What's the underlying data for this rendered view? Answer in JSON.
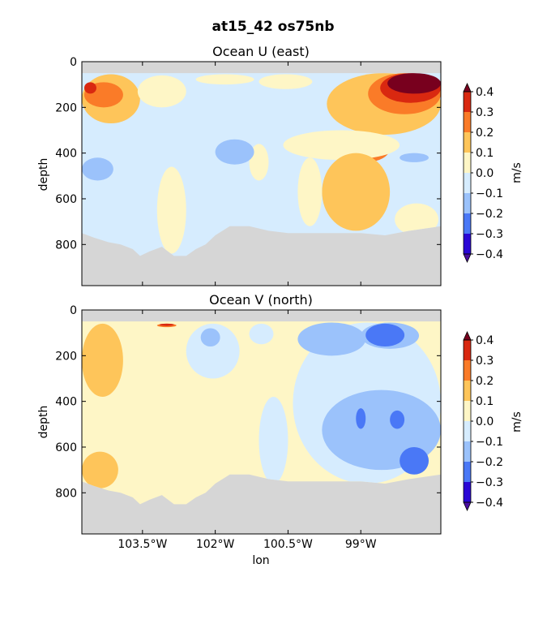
{
  "figure": {
    "suptitle": "at15_42 os75nb"
  },
  "colors": {
    "land": "#d6d6d6",
    "levels": [
      "#2a07d6",
      "#4a78f6",
      "#9bc2fb",
      "#d6ecfe",
      "#fef6c6",
      "#fec55a",
      "#fa7b28",
      "#d92810"
    ],
    "under": "#4a0ea0",
    "over": "#78001e"
  },
  "chart_data": [
    {
      "type": "heatmap",
      "title": "Ocean U (east)",
      "ylabel": "depth",
      "xlabel": "",
      "xlim": [
        -104.75,
        -97.35
      ],
      "ylim": [
        980,
        0
      ],
      "yticks": [
        0,
        200,
        400,
        600,
        800
      ],
      "ytick_labels": [
        "0",
        "200",
        "400",
        "600",
        "800"
      ],
      "xticks": [
        -103.5,
        -102,
        -100.5,
        -99
      ],
      "xtick_labels": [
        "103.5°W",
        "102°W",
        "100.5°W",
        "99°W"
      ],
      "colorbar": {
        "label": "m/s",
        "levels": [
          -0.4,
          -0.3,
          -0.2,
          -0.1,
          0.0,
          0.1,
          0.2,
          0.3,
          0.4
        ],
        "tick_labels": [
          "−0.4",
          "−0.3",
          "−0.2",
          "−0.1",
          "0.0",
          "0.1",
          "0.2",
          "0.3",
          "0.4"
        ]
      },
      "surface_gap_depth": 50,
      "background_value": -0.05,
      "regions": [
        {
          "lon": [
            -104.75,
            -103.55
          ],
          "depth": [
            55,
            270
          ],
          "value": 0.15
        },
        {
          "lon": [
            -104.7,
            -103.9
          ],
          "depth": [
            90,
            200
          ],
          "value": 0.25
        },
        {
          "lon": [
            -104.7,
            -104.45
          ],
          "depth": [
            90,
            140
          ],
          "value": 0.35
        },
        {
          "lon": [
            -103.6,
            -102.6
          ],
          "depth": [
            60,
            200
          ],
          "value": 0.05
        },
        {
          "lon": [
            -102.4,
            -101.2
          ],
          "depth": [
            55,
            100
          ],
          "value": 0.05
        },
        {
          "lon": [
            -101.1,
            -100.0
          ],
          "depth": [
            55,
            120
          ],
          "value": 0.05
        },
        {
          "lon": [
            -99.7,
            -97.35
          ],
          "depth": [
            50,
            320
          ],
          "value": 0.15
        },
        {
          "lon": [
            -98.85,
            -97.35
          ],
          "depth": [
            50,
            230
          ],
          "value": 0.25
        },
        {
          "lon": [
            -98.6,
            -97.35
          ],
          "depth": [
            50,
            180
          ],
          "value": 0.35
        },
        {
          "lon": [
            -98.45,
            -97.35
          ],
          "depth": [
            50,
            140
          ],
          "value": 0.45
        },
        {
          "lon": [
            -99.4,
            -98.4
          ],
          "depth": [
            320,
            440
          ],
          "value": 0.25
        },
        {
          "lon": [
            -100.6,
            -98.2
          ],
          "depth": [
            300,
            430
          ],
          "value": 0.05
        },
        {
          "lon": [
            -99.8,
            -98.4
          ],
          "depth": [
            400,
            740
          ],
          "value": 0.15
        },
        {
          "lon": [
            -100.3,
            -99.8
          ],
          "depth": [
            420,
            720
          ],
          "value": 0.05
        },
        {
          "lon": [
            -98.3,
            -97.4
          ],
          "depth": [
            620,
            760
          ],
          "value": 0.05
        },
        {
          "lon": [
            -103.2,
            -102.6
          ],
          "depth": [
            460,
            840
          ],
          "value": 0.05
        },
        {
          "lon": [
            -101.3,
            -100.9
          ],
          "depth": [
            360,
            520
          ],
          "value": 0.05
        },
        {
          "lon": [
            -104.75,
            -104.1
          ],
          "depth": [
            420,
            520
          ],
          "value": -0.15
        },
        {
          "lon": [
            -102.0,
            -101.2
          ],
          "depth": [
            340,
            450
          ],
          "value": -0.15
        },
        {
          "lon": [
            -98.2,
            -97.6
          ],
          "depth": [
            400,
            440
          ],
          "value": -0.15
        }
      ],
      "bottom_depth_by_lon": [
        [
          -104.75,
          750
        ],
        [
          -104.5,
          770
        ],
        [
          -104.2,
          790
        ],
        [
          -103.95,
          800
        ],
        [
          -103.7,
          820
        ],
        [
          -103.55,
          850
        ],
        [
          -103.35,
          830
        ],
        [
          -103.1,
          810
        ],
        [
          -102.85,
          850
        ],
        [
          -102.6,
          850
        ],
        [
          -102.4,
          820
        ],
        [
          -102.2,
          800
        ],
        [
          -102.0,
          760
        ],
        [
          -101.7,
          720
        ],
        [
          -101.3,
          720
        ],
        [
          -100.9,
          740
        ],
        [
          -100.5,
          750
        ],
        [
          -100.0,
          750
        ],
        [
          -99.5,
          750
        ],
        [
          -99.0,
          750
        ],
        [
          -98.5,
          760
        ],
        [
          -98.0,
          740
        ],
        [
          -97.35,
          720
        ]
      ]
    },
    {
      "type": "heatmap",
      "title": "Ocean V (north)",
      "ylabel": "depth",
      "xlabel": "lon",
      "xlim": [
        -104.75,
        -97.35
      ],
      "ylim": [
        980,
        0
      ],
      "yticks": [
        0,
        200,
        400,
        600,
        800
      ],
      "ytick_labels": [
        "0",
        "200",
        "400",
        "600",
        "800"
      ],
      "xticks": [
        -103.5,
        -102,
        -100.5,
        -99
      ],
      "xtick_labels": [
        "103.5°W",
        "102°W",
        "100.5°W",
        "99°W"
      ],
      "colorbar": {
        "label": "m/s",
        "levels": [
          -0.4,
          -0.3,
          -0.2,
          -0.1,
          0.0,
          0.1,
          0.2,
          0.3,
          0.4
        ],
        "tick_labels": [
          "−0.4",
          "−0.3",
          "−0.2",
          "−0.1",
          "0.0",
          "0.1",
          "0.2",
          "0.3",
          "0.4"
        ]
      },
      "surface_gap_depth": 50,
      "background_value": 0.05,
      "regions": [
        {
          "lon": [
            -104.75,
            -103.9
          ],
          "depth": [
            60,
            380
          ],
          "value": 0.15
        },
        {
          "lon": [
            -104.75,
            -104.0
          ],
          "depth": [
            620,
            780
          ],
          "value": 0.15
        },
        {
          "lon": [
            -102.6,
            -101.5
          ],
          "depth": [
            60,
            300
          ],
          "value": -0.05
        },
        {
          "lon": [
            -102.3,
            -101.9
          ],
          "depth": [
            80,
            160
          ],
          "value": -0.15
        },
        {
          "lon": [
            -101.3,
            -100.8
          ],
          "depth": [
            60,
            150
          ],
          "value": -0.05
        },
        {
          "lon": [
            -101.1,
            -100.5
          ],
          "depth": [
            380,
            760
          ],
          "value": -0.05
        },
        {
          "lon": [
            -100.4,
            -97.35
          ],
          "depth": [
            55,
            760
          ],
          "value": -0.05
        },
        {
          "lon": [
            -100.3,
            -98.9
          ],
          "depth": [
            55,
            200
          ],
          "value": -0.15
        },
        {
          "lon": [
            -99.0,
            -97.8
          ],
          "depth": [
            55,
            170
          ],
          "value": -0.15
        },
        {
          "lon": [
            -98.9,
            -98.1
          ],
          "depth": [
            60,
            160
          ],
          "value": -0.25
        },
        {
          "lon": [
            -99.8,
            -97.35
          ],
          "depth": [
            350,
            700
          ],
          "value": -0.15
        },
        {
          "lon": [
            -99.1,
            -98.9
          ],
          "depth": [
            430,
            520
          ],
          "value": -0.25
        },
        {
          "lon": [
            -98.4,
            -98.1
          ],
          "depth": [
            440,
            520
          ],
          "value": -0.25
        },
        {
          "lon": [
            -98.2,
            -97.6
          ],
          "depth": [
            600,
            720
          ],
          "value": -0.25
        },
        {
          "lon": [
            -103.2,
            -102.8
          ],
          "depth": [
            60,
            75
          ],
          "value": 0.25
        },
        {
          "lon": [
            -103.15,
            -102.85
          ],
          "depth": [
            60,
            70
          ],
          "value": 0.35
        }
      ],
      "bottom_depth_by_lon": [
        [
          -104.75,
          750
        ],
        [
          -104.5,
          770
        ],
        [
          -104.2,
          790
        ],
        [
          -103.95,
          800
        ],
        [
          -103.7,
          820
        ],
        [
          -103.55,
          850
        ],
        [
          -103.35,
          830
        ],
        [
          -103.1,
          810
        ],
        [
          -102.85,
          850
        ],
        [
          -102.6,
          850
        ],
        [
          -102.4,
          820
        ],
        [
          -102.2,
          800
        ],
        [
          -102.0,
          760
        ],
        [
          -101.7,
          720
        ],
        [
          -101.3,
          720
        ],
        [
          -100.9,
          740
        ],
        [
          -100.5,
          750
        ],
        [
          -100.0,
          750
        ],
        [
          -99.5,
          750
        ],
        [
          -99.0,
          750
        ],
        [
          -98.5,
          760
        ],
        [
          -98.0,
          740
        ],
        [
          -97.35,
          720
        ]
      ]
    }
  ]
}
